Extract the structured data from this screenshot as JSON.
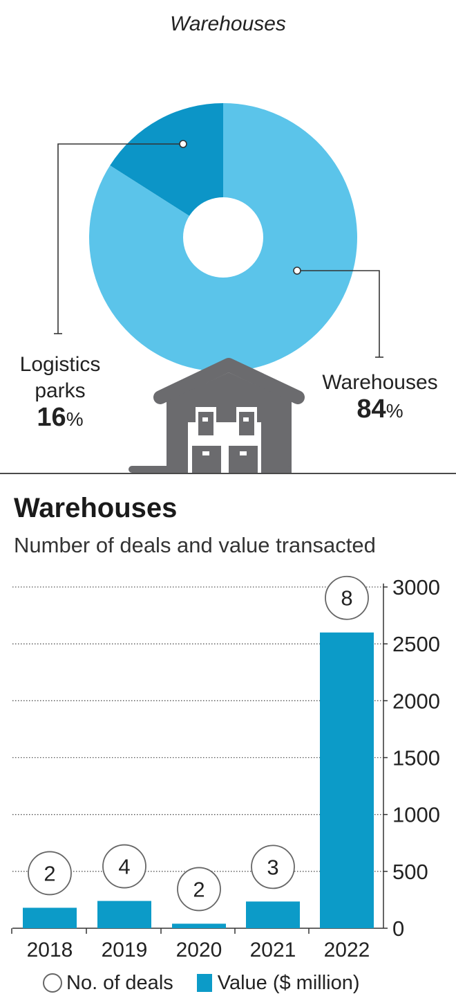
{
  "pie": {
    "title": "Warehouses",
    "slices": [
      {
        "label_line1": "Logistics",
        "label_line2": "parks",
        "value": "16",
        "unit": "%",
        "color": "#0c95c7"
      },
      {
        "label_line1": "Warehouses",
        "label_line2": "",
        "value": "84",
        "unit": "%",
        "color": "#5bc4ea"
      }
    ]
  },
  "bar_chart": {
    "title": "Warehouses",
    "subtitle": "Number of deals and value transacted",
    "legend": {
      "deals": "No. of deals",
      "value": "Value ($ million)"
    }
  },
  "colors": {
    "bar": "#0c9bc8",
    "pie_light": "#5bc4ea",
    "pie_dark": "#0c95c7",
    "icon": "#6b6b6e"
  },
  "icons": [
    "warehouse-icon"
  ],
  "chart_data": [
    {
      "type": "pie",
      "title": "Warehouses",
      "categories": [
        "Logistics parks",
        "Warehouses"
      ],
      "values": [
        16,
        84
      ],
      "unit": "%"
    },
    {
      "type": "bar",
      "title": "Warehouses",
      "subtitle": "Number of deals and value transacted",
      "categories": [
        "2018",
        "2019",
        "2020",
        "2021",
        "2022"
      ],
      "series": [
        {
          "name": "Value ($ million)",
          "values": [
            180,
            240,
            40,
            235,
            2600
          ]
        },
        {
          "name": "No. of deals",
          "values": [
            2,
            4,
            2,
            3,
            8
          ]
        }
      ],
      "yticks": [
        "0",
        "500",
        "1000",
        "1500",
        "2000",
        "2500",
        "3000"
      ],
      "ylim": [
        0,
        3000
      ],
      "grid": true,
      "legend_position": "bottom"
    }
  ]
}
